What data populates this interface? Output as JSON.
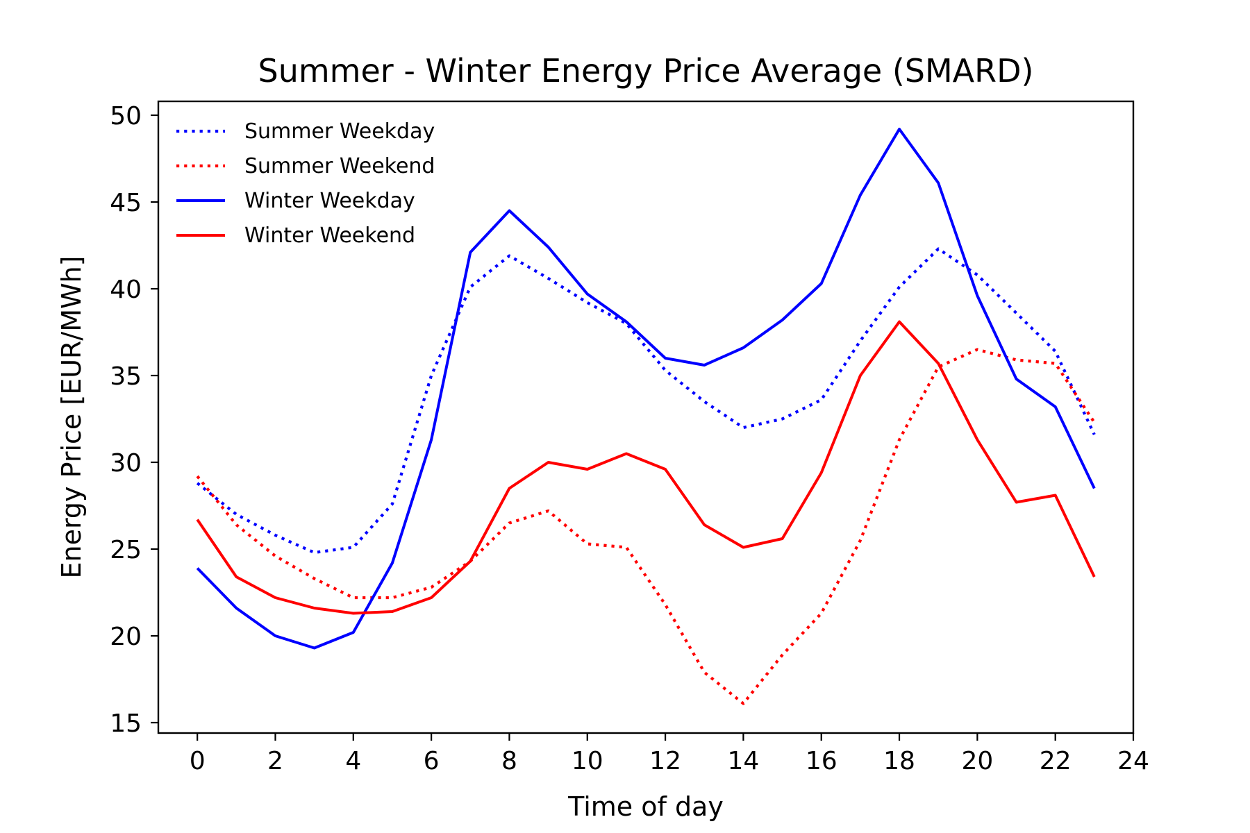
{
  "chart_data": {
    "type": "line",
    "title": "Summer - Winter Energy Price Average (SMARD)",
    "xlabel": "Time of day",
    "ylabel": "Energy Price [EUR/MWh]",
    "xlim": [
      -1,
      24
    ],
    "ylim": [
      14.4,
      50.8
    ],
    "xticks": [
      0,
      2,
      4,
      6,
      8,
      10,
      12,
      14,
      16,
      18,
      20,
      22,
      24
    ],
    "yticks": [
      15,
      20,
      25,
      30,
      35,
      40,
      45,
      50
    ],
    "grid": false,
    "legend_position": "top-left",
    "x": [
      0,
      1,
      2,
      3,
      4,
      5,
      6,
      7,
      8,
      9,
      10,
      11,
      12,
      13,
      14,
      15,
      16,
      17,
      18,
      19,
      20,
      21,
      22,
      23
    ],
    "series": [
      {
        "name": "Summer Weekday",
        "color": "#0000ff",
        "style": "dotted",
        "values": [
          28.8,
          27.0,
          25.8,
          24.8,
          25.1,
          27.6,
          35.0,
          40.1,
          41.9,
          40.6,
          39.2,
          38.0,
          35.3,
          33.5,
          32.0,
          32.5,
          33.6,
          37.0,
          40.1,
          42.3,
          40.8,
          38.6,
          36.4,
          31.6
        ]
      },
      {
        "name": "Summer Weekend",
        "color": "#ff0000",
        "style": "dotted",
        "values": [
          29.2,
          26.4,
          24.6,
          23.3,
          22.2,
          22.2,
          22.8,
          24.3,
          26.5,
          27.2,
          25.3,
          25.1,
          21.8,
          17.9,
          16.1,
          18.9,
          21.3,
          25.5,
          31.3,
          35.5,
          36.5,
          35.9,
          35.7,
          32.3
        ]
      },
      {
        "name": "Winter Weekday",
        "color": "#0000ff",
        "style": "solid",
        "values": [
          23.9,
          21.6,
          20.0,
          19.3,
          20.2,
          24.2,
          31.3,
          42.1,
          44.5,
          42.4,
          39.7,
          38.1,
          36.0,
          35.6,
          36.6,
          38.2,
          40.3,
          45.4,
          49.2,
          46.1,
          39.6,
          34.8,
          33.2,
          28.5
        ]
      },
      {
        "name": "Winter Weekend",
        "color": "#ff0000",
        "style": "solid",
        "values": [
          26.7,
          23.4,
          22.2,
          21.6,
          21.3,
          21.4,
          22.2,
          24.3,
          28.5,
          30.0,
          29.6,
          30.5,
          29.6,
          26.4,
          25.1,
          25.6,
          29.4,
          35.0,
          38.1,
          35.7,
          31.3,
          27.7,
          28.1,
          23.4
        ]
      }
    ]
  }
}
